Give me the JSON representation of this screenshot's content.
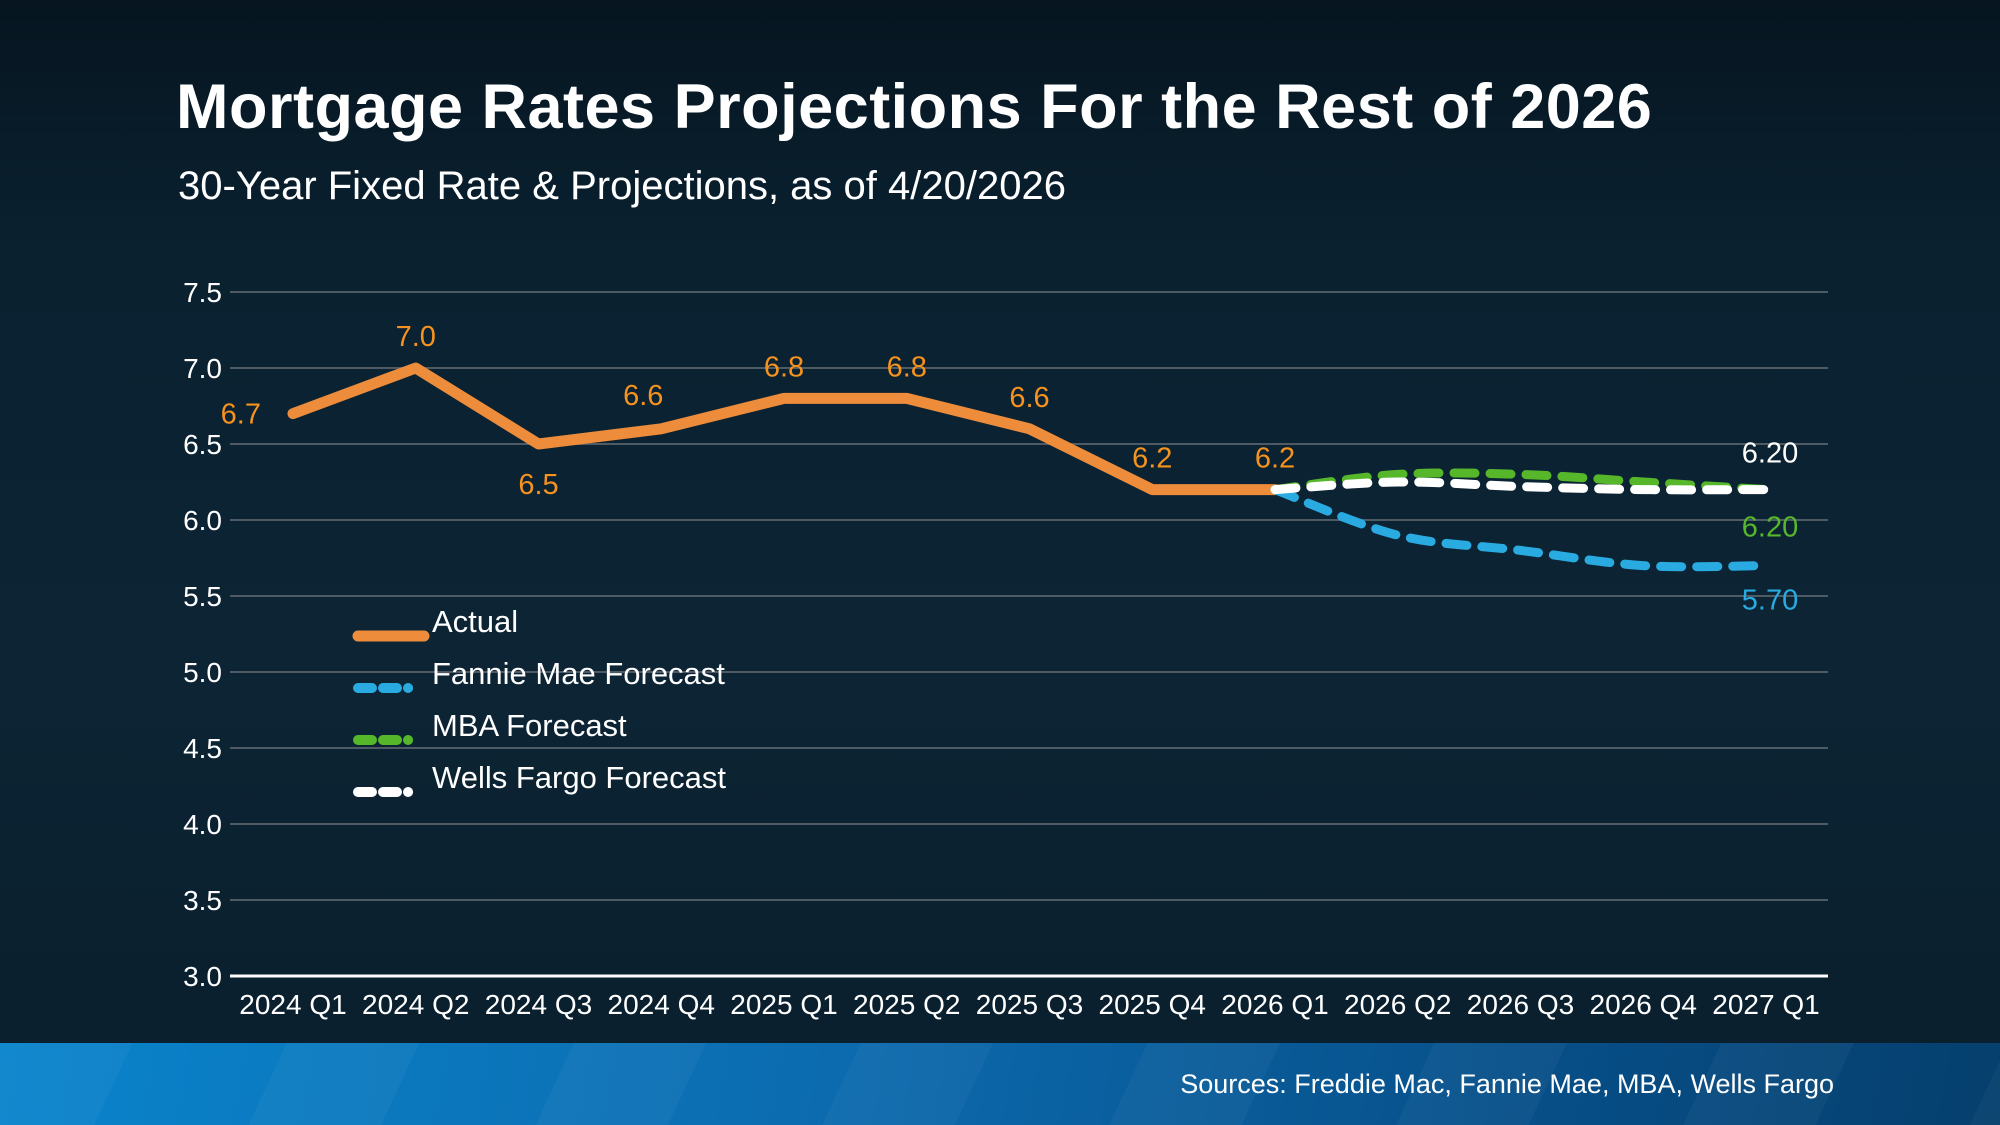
{
  "header": {
    "title": "Mortgage Rates Projections For the Rest of 2026",
    "subtitle": "30-Year Fixed Rate & Projections, as of 4/20/2026"
  },
  "colors": {
    "background": "#0C2434",
    "actual": "#ED8C3B",
    "actual_label": "#F6921E",
    "fannie_mae": "#29ABE2",
    "mba": "#56B72B",
    "wells_fargo": "#FFFFFF",
    "gridline": "#4E5A64",
    "axis_line": "#FFFFFF",
    "footer_bar_left": "#0A84CC",
    "footer_bar_right": "#053F6D"
  },
  "chart_data": {
    "type": "line",
    "title": "Mortgage Rates Projections For the Rest of 2026",
    "subtitle": "30-Year Fixed Rate & Projections, as of 4/20/2026",
    "categories": [
      "2024 Q1",
      "2024 Q2",
      "2024 Q3",
      "2024 Q4",
      "2025 Q1",
      "2025 Q2",
      "2025 Q3",
      "2025 Q4",
      "2026 Q1",
      "2026 Q2",
      "2026 Q3",
      "2026 Q4",
      "2027 Q1"
    ],
    "ylim": [
      3.0,
      7.5
    ],
    "ytick_step": 0.5,
    "yticks": [
      "7.5",
      "7.0",
      "6.5",
      "6.0",
      "5.5",
      "5.0",
      "4.5",
      "4.0",
      "3.5",
      "3.0"
    ],
    "grid": true,
    "legend_position": "inside-left-middle",
    "series": [
      {
        "name": "Actual",
        "color": "#ED8C3B",
        "label_color": "#F6921E",
        "line_style": "solid",
        "values": [
          6.7,
          7.0,
          6.5,
          6.6,
          6.8,
          6.8,
          6.6,
          6.2,
          6.2,
          null,
          null,
          null,
          null
        ],
        "point_labels": [
          "6.7",
          "7.0",
          "6.5",
          "6.6",
          "6.8",
          "6.8",
          "6.6",
          "6.2",
          "6.2"
        ]
      },
      {
        "name": "Fannie Mae Forecast",
        "color": "#29ABE2",
        "line_style": "dashed",
        "values": [
          null,
          null,
          null,
          null,
          null,
          null,
          null,
          null,
          6.2,
          5.9,
          5.8,
          5.7,
          5.7
        ],
        "end_label": "5.70"
      },
      {
        "name": "MBA Forecast",
        "color": "#56B72B",
        "line_style": "dashed",
        "values": [
          null,
          null,
          null,
          null,
          null,
          null,
          null,
          null,
          6.2,
          6.3,
          6.3,
          6.25,
          6.2
        ],
        "end_label": "6.20"
      },
      {
        "name": "Wells Fargo Forecast",
        "color": "#FFFFFF",
        "line_style": "dashed",
        "values": [
          null,
          null,
          null,
          null,
          null,
          null,
          null,
          null,
          6.2,
          6.25,
          6.22,
          6.2,
          6.2
        ],
        "end_label": "6.20"
      }
    ]
  },
  "legend": {
    "items": [
      {
        "label": "Actual",
        "color": "#ED8C3B",
        "style": "solid"
      },
      {
        "label": "Fannie Mae Forecast",
        "color": "#29ABE2",
        "style": "dashed"
      },
      {
        "label": "MBA Forecast",
        "color": "#56B72B",
        "style": "dashed"
      },
      {
        "label": "Wells Fargo Forecast",
        "color": "#FFFFFF",
        "style": "dashed"
      }
    ]
  },
  "footer": {
    "sources": "Sources: Freddie Mac, Fannie Mae, MBA, Wells Fargo"
  }
}
